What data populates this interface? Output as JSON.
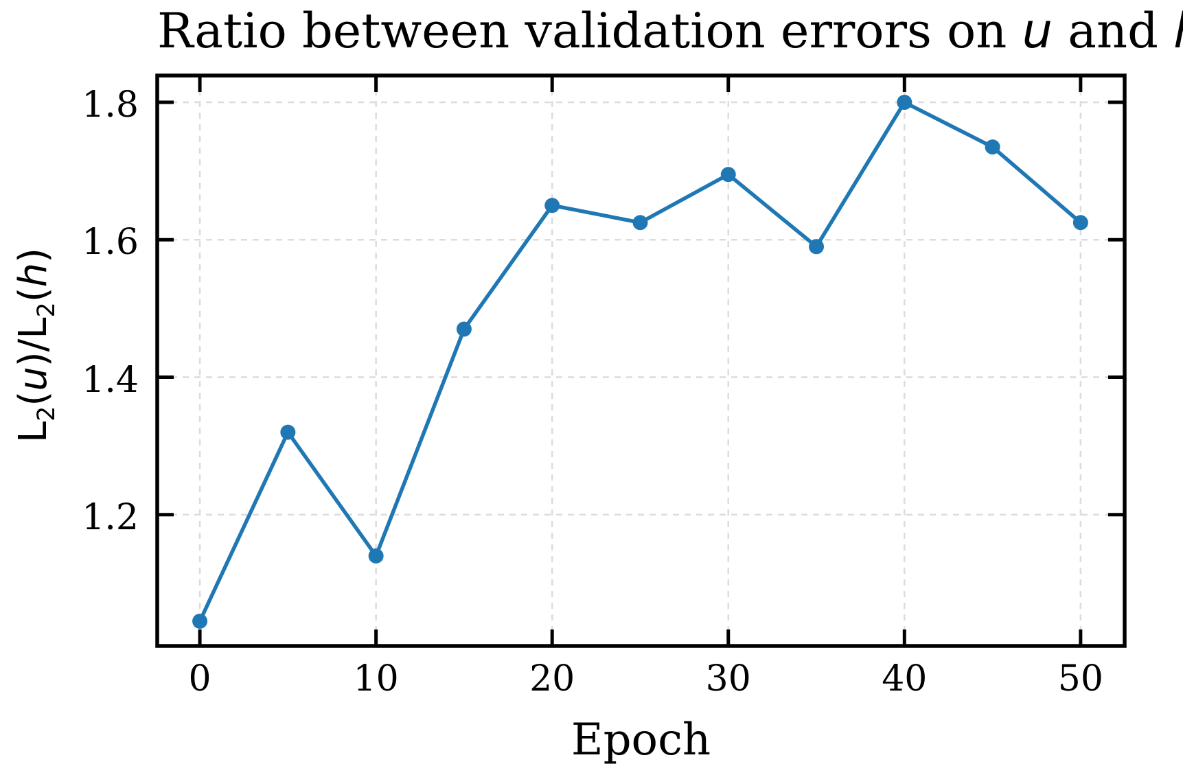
{
  "title": {
    "prefix": "Ratio between validation errors on ",
    "var1": "u",
    "mid": " and ",
    "var2": "h"
  },
  "axes": {
    "xlabel": "Epoch",
    "ylabel_parts": {
      "l1": "L",
      "sub1": "2",
      "open1": "(",
      "var1": "u",
      "mid": ")/L",
      "sub2": "2",
      "open2": "(",
      "var2": "h",
      "close2": ")"
    }
  },
  "chart_data": {
    "type": "line",
    "title": "Ratio between validation errors on u and h",
    "xlabel": "Epoch",
    "ylabel": "L2(u)/L2(h)",
    "x": [
      0,
      5,
      10,
      15,
      20,
      25,
      30,
      35,
      40,
      45,
      50
    ],
    "values": [
      1.045,
      1.32,
      1.14,
      1.47,
      1.65,
      1.625,
      1.695,
      1.59,
      1.8,
      1.735,
      1.625
    ],
    "x_ticks": [
      0,
      10,
      20,
      30,
      40,
      50
    ],
    "y_ticks": [
      1.2,
      1.4,
      1.6,
      1.8
    ],
    "xlim": [
      -2.42,
      52.5
    ],
    "ylim": [
      1.009,
      1.839
    ],
    "grid": true,
    "legend": "none",
    "line_color": "#1f77b4",
    "marker": "circle",
    "grid_color": "#dcdcdc",
    "spine_color": "#000000"
  }
}
